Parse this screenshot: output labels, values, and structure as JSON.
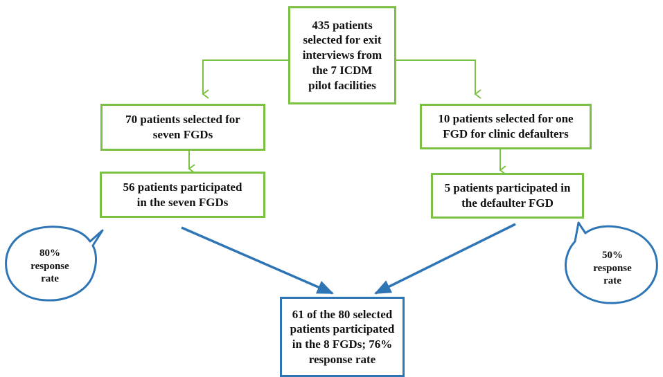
{
  "colors": {
    "green_border": "#7ac143",
    "blue": "#2e75b6",
    "text": "#111111"
  },
  "boxes": {
    "top": "435 patients\nselected for exit\ninterviews from\nthe 7 ICDM\npilot facilities",
    "left_selected": "70 patients selected for\nseven FGDs",
    "right_selected": "10 patients selected for one\nFGD for clinic defaulters",
    "left_participated": "56 patients participated\nin the seven FGDs",
    "right_participated": "5 patients participated in\nthe defaulter FGD",
    "bottom": "61 of the 80 selected\npatients participated\nin the 8 FGDs; 76%\nresponse rate"
  },
  "bubbles": {
    "left": "80%\nresponse\nrate",
    "right": "50%\nresponse\nrate"
  }
}
